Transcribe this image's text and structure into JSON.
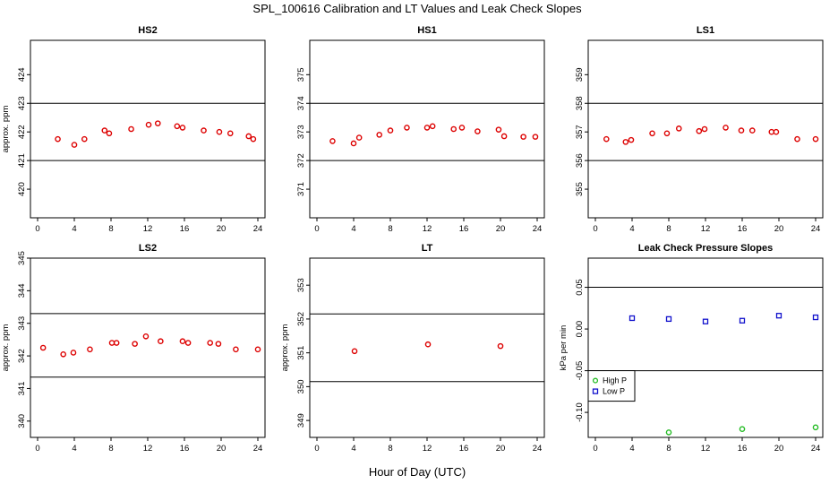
{
  "figure": {
    "title": "SPL_100616  Calibration and LT Values and Leak Check Slopes",
    "xlabel": "Hour of Day (UTC)"
  },
  "colors": {
    "red": "#dd0000",
    "green": "#22bb22",
    "blue": "#1111cc"
  },
  "chart_data": [
    {
      "type": "scatter",
      "title": "HS2",
      "ylabel": "approx. ppm",
      "xlim": [
        0,
        24
      ],
      "ylim": [
        419,
        425.2
      ],
      "xticks": [
        0,
        4,
        8,
        12,
        16,
        20,
        24
      ],
      "yticks": [
        420,
        421,
        422,
        423,
        424
      ],
      "hlines": [
        421,
        423
      ],
      "series": [
        {
          "name": "",
          "color": "red",
          "marker": "circle",
          "x": [
            2.2,
            4.0,
            5.1,
            7.3,
            7.8,
            10.2,
            12.1,
            13.1,
            15.2,
            15.8,
            18.1,
            19.8,
            21.0,
            23.0,
            23.5
          ],
          "y": [
            421.75,
            421.55,
            421.75,
            422.05,
            421.95,
            422.1,
            422.25,
            422.3,
            422.2,
            422.15,
            422.05,
            422.0,
            421.95,
            421.85,
            421.75
          ]
        }
      ]
    },
    {
      "type": "scatter",
      "title": "HS1",
      "ylabel": "",
      "xlim": [
        0,
        24
      ],
      "ylim": [
        370.0,
        376.2
      ],
      "xticks": [
        0,
        4,
        8,
        12,
        16,
        20,
        24
      ],
      "yticks": [
        371,
        372,
        373,
        374,
        375
      ],
      "hlines": [
        372,
        374
      ],
      "series": [
        {
          "name": "",
          "color": "red",
          "marker": "circle",
          "x": [
            1.7,
            4.0,
            4.6,
            6.8,
            8.0,
            9.8,
            12.0,
            12.6,
            14.9,
            15.8,
            17.5,
            19.8,
            20.4,
            22.5,
            23.8
          ],
          "y": [
            372.68,
            372.6,
            372.8,
            372.9,
            373.05,
            373.15,
            373.15,
            373.2,
            373.1,
            373.15,
            373.02,
            373.08,
            372.85,
            372.83,
            372.83
          ]
        }
      ]
    },
    {
      "type": "scatter",
      "title": "LS1",
      "ylabel": "",
      "xlim": [
        0,
        24
      ],
      "ylim": [
        354.0,
        360.2
      ],
      "xticks": [
        0,
        4,
        8,
        12,
        16,
        20,
        24
      ],
      "yticks": [
        355,
        356,
        357,
        358,
        359
      ],
      "hlines": [
        356,
        358
      ],
      "series": [
        {
          "name": "",
          "color": "red",
          "marker": "circle",
          "x": [
            1.2,
            3.3,
            3.9,
            6.2,
            7.8,
            9.1,
            11.3,
            11.9,
            14.2,
            15.9,
            17.1,
            19.2,
            19.7,
            22.0,
            24.0
          ],
          "y": [
            356.75,
            356.65,
            356.72,
            356.95,
            356.95,
            357.12,
            357.03,
            357.1,
            357.15,
            357.05,
            357.05,
            357.0,
            357.0,
            356.75,
            356.75
          ]
        }
      ]
    },
    {
      "type": "scatter",
      "title": "LS2",
      "ylabel": "approx. ppm",
      "xlim": [
        0,
        24
      ],
      "ylim": [
        339.5,
        345.0
      ],
      "xticks": [
        0,
        4,
        8,
        12,
        16,
        20,
        24
      ],
      "yticks": [
        340,
        341,
        342,
        343,
        344,
        345
      ],
      "hlines": [
        341.35,
        343.3
      ],
      "series": [
        {
          "name": "",
          "color": "red",
          "marker": "circle",
          "x": [
            0.6,
            2.8,
            3.9,
            5.7,
            8.1,
            8.6,
            10.6,
            11.8,
            13.4,
            15.8,
            16.4,
            18.8,
            19.7,
            21.6,
            24.0
          ],
          "y": [
            342.25,
            342.05,
            342.1,
            342.2,
            342.4,
            342.4,
            342.37,
            342.6,
            342.45,
            342.45,
            342.4,
            342.4,
            342.37,
            342.2,
            342.2
          ]
        }
      ]
    },
    {
      "type": "scatter",
      "title": "LT",
      "ylabel": "approx. ppm",
      "xlim": [
        0,
        24
      ],
      "ylim": [
        348.5,
        353.8
      ],
      "xticks": [
        0,
        4,
        8,
        12,
        16,
        20,
        24
      ],
      "yticks": [
        349,
        350,
        351,
        352,
        353
      ],
      "hlines": [
        350.15,
        352.15
      ],
      "series": [
        {
          "name": "",
          "color": "red",
          "marker": "circle",
          "x": [
            4.1,
            12.1,
            20.0
          ],
          "y": [
            351.05,
            351.25,
            351.2
          ]
        }
      ]
    },
    {
      "type": "scatter",
      "title": "Leak Check Pressure Slopes",
      "ylabel": "kPa per min",
      "xlim": [
        0,
        24
      ],
      "ylim": [
        -0.13,
        0.085
      ],
      "xticks": [
        0,
        4,
        8,
        12,
        16,
        20,
        24
      ],
      "yticks": [
        -0.1,
        -0.05,
        0.0,
        0.05
      ],
      "ytick_labels": [
        "-0.10",
        "-0.05",
        "0.00",
        "0.05"
      ],
      "hlines": [
        -0.05,
        0.05
      ],
      "legend": {
        "position": "left",
        "entries": [
          {
            "label": "High P",
            "color": "green"
          },
          {
            "label": "Low P",
            "color": "blue"
          }
        ]
      },
      "series": [
        {
          "name": "High P",
          "color": "green",
          "marker": "circle",
          "x": [
            8,
            16,
            24
          ],
          "y": [
            -0.124,
            -0.12,
            -0.118
          ]
        },
        {
          "name": "Low P",
          "color": "blue",
          "marker": "square",
          "x": [
            4,
            8,
            12,
            16,
            20,
            24
          ],
          "y": [
            0.013,
            0.012,
            0.009,
            0.01,
            0.016,
            0.014
          ]
        }
      ]
    }
  ]
}
